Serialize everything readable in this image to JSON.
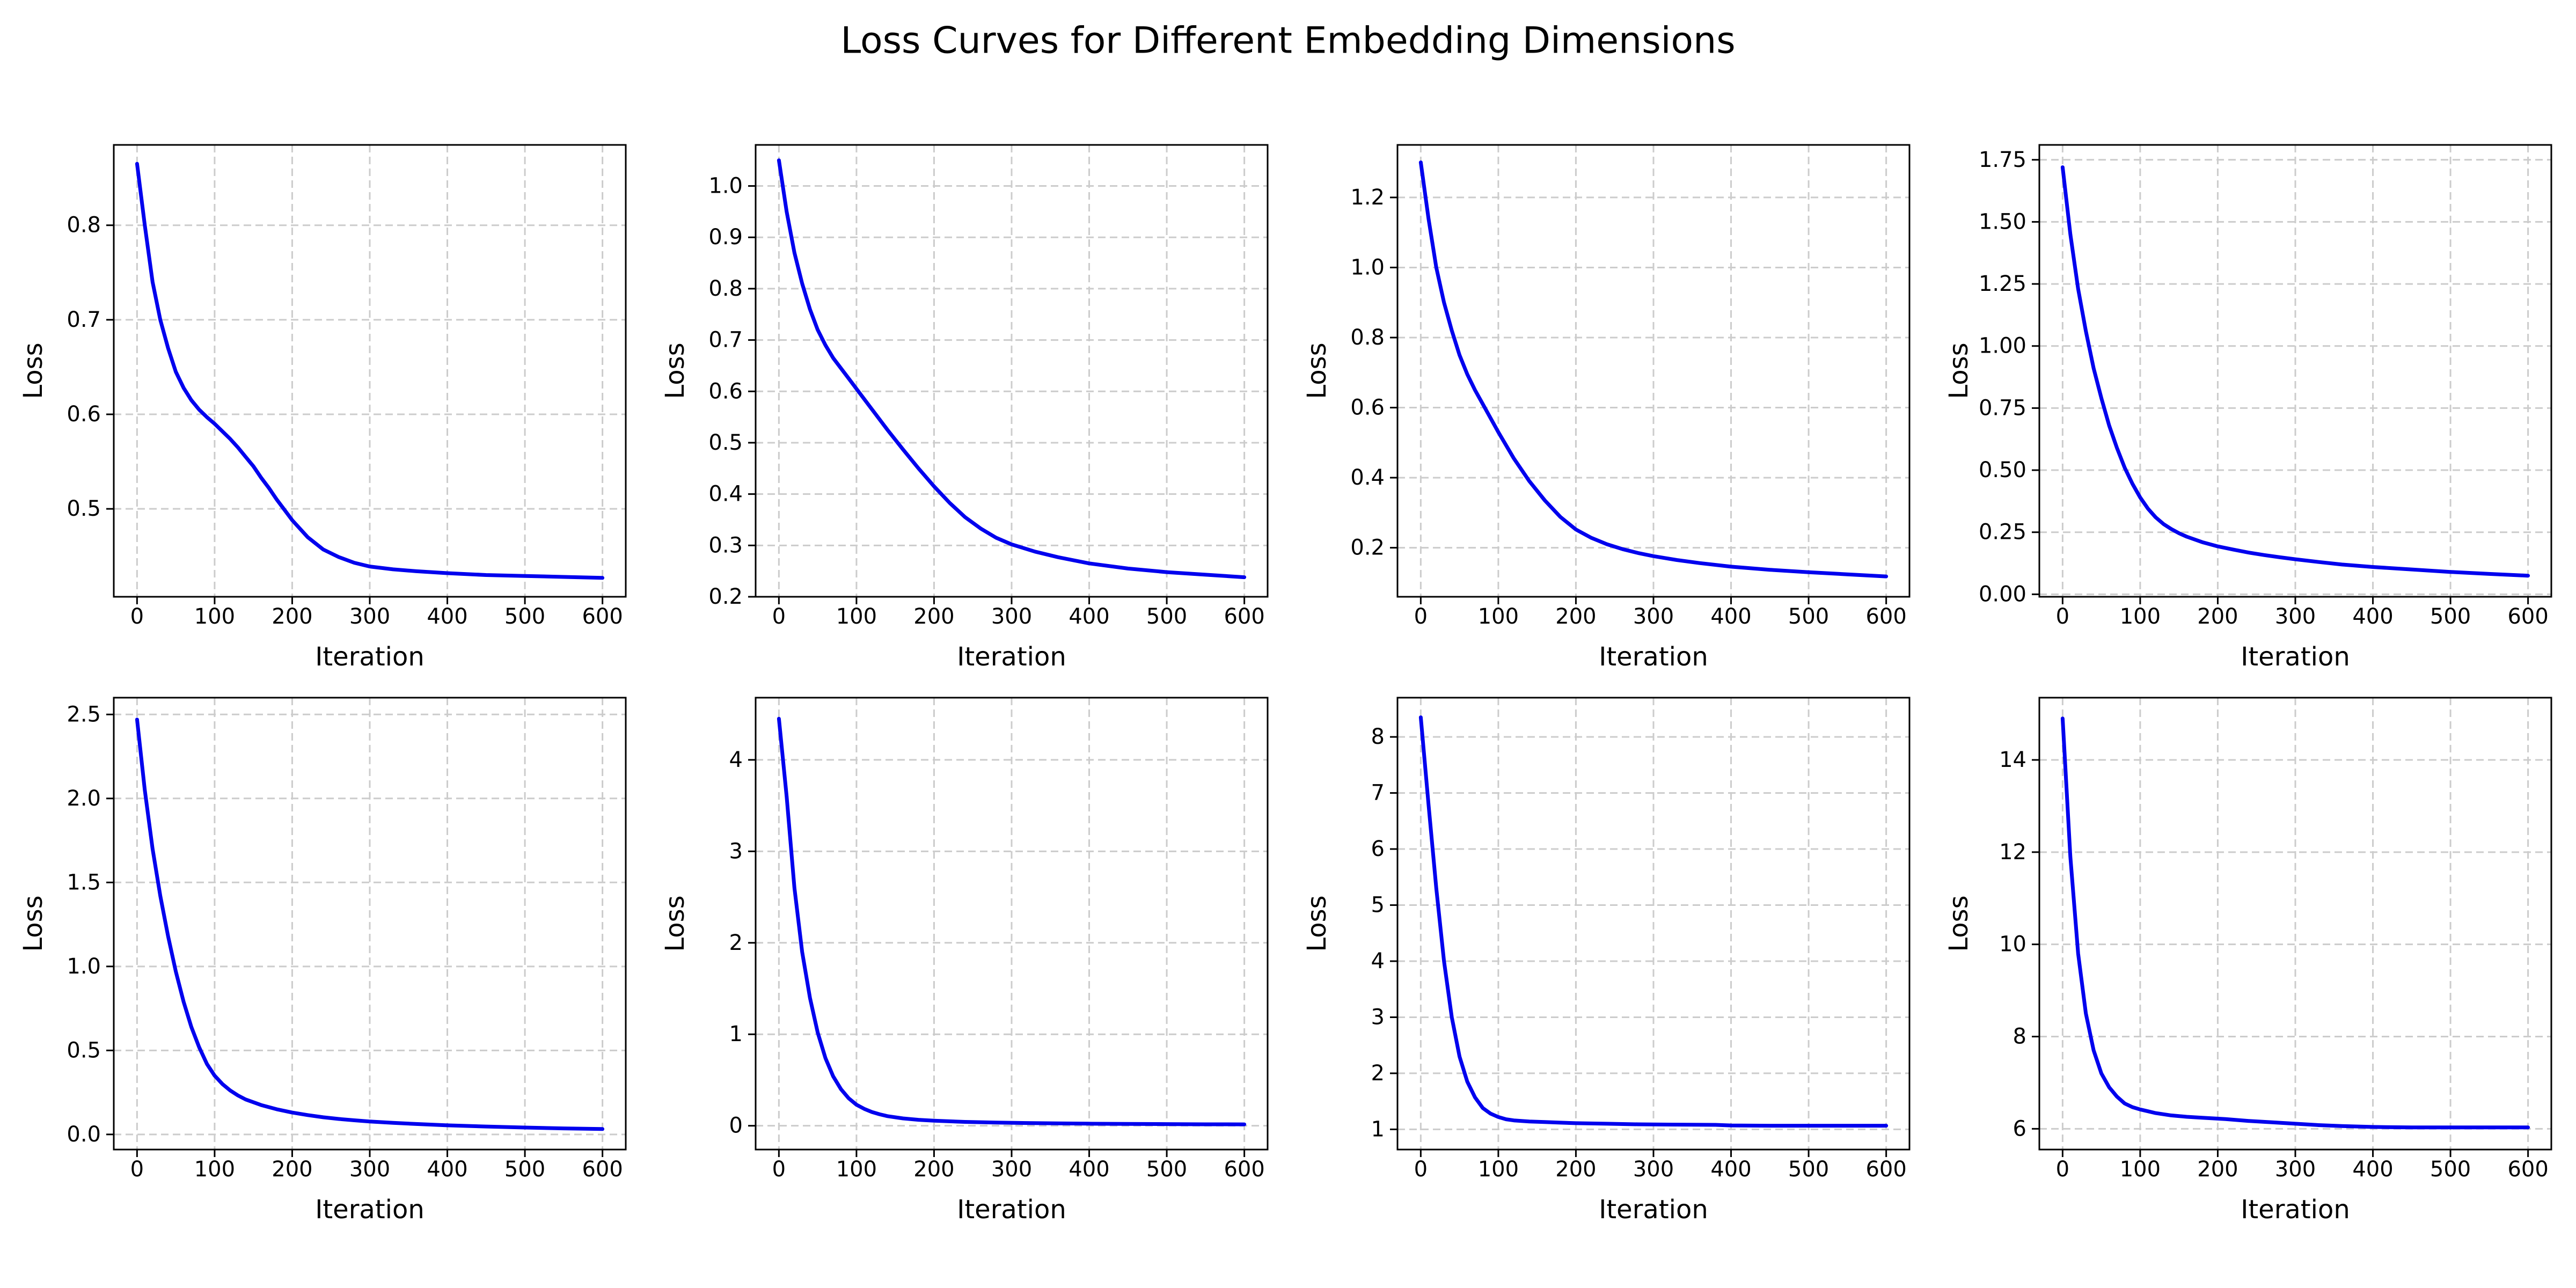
{
  "figure": {
    "title": "Loss Curves for Different Embedding Dimensions"
  },
  "colors": {
    "line": "#0000ee",
    "grid": "#cccccc",
    "axis": "#000000",
    "background": "#ffffff"
  },
  "chart_data": [
    {
      "type": "line",
      "xlabel": "Iteration",
      "ylabel": "Loss",
      "xlim": [
        -30,
        630
      ],
      "ylim": [
        0.407,
        0.885
      ],
      "xticks": [
        0,
        100,
        200,
        300,
        400,
        500,
        600
      ],
      "xtick_labels": [
        "0",
        "100",
        "200",
        "300",
        "400",
        "500",
        "600"
      ],
      "yticks": [
        0.5,
        0.6,
        0.7,
        0.8
      ],
      "ytick_labels": [
        "0.5",
        "0.6",
        "0.7",
        "0.8"
      ],
      "grid": true,
      "series": [
        {
          "x": [
            0,
            10,
            20,
            30,
            40,
            50,
            60,
            70,
            80,
            90,
            100,
            110,
            120,
            130,
            140,
            150,
            160,
            170,
            180,
            190,
            200,
            220,
            240,
            260,
            280,
            300,
            330,
            360,
            400,
            450,
            500,
            550,
            600
          ],
          "y": [
            0.865,
            0.8,
            0.74,
            0.7,
            0.67,
            0.645,
            0.628,
            0.615,
            0.605,
            0.597,
            0.59,
            0.582,
            0.574,
            0.565,
            0.555,
            0.545,
            0.533,
            0.522,
            0.51,
            0.499,
            0.488,
            0.47,
            0.457,
            0.449,
            0.443,
            0.439,
            0.436,
            0.434,
            0.432,
            0.43,
            0.429,
            0.428,
            0.427
          ]
        }
      ]
    },
    {
      "type": "line",
      "xlabel": "Iteration",
      "ylabel": "Loss",
      "xlim": [
        -30,
        630
      ],
      "ylim": [
        0.2,
        1.08
      ],
      "xticks": [
        0,
        100,
        200,
        300,
        400,
        500,
        600
      ],
      "xtick_labels": [
        "0",
        "100",
        "200",
        "300",
        "400",
        "500",
        "600"
      ],
      "yticks": [
        0.2,
        0.3,
        0.4,
        0.5,
        0.6,
        0.7,
        0.8,
        0.9,
        1.0
      ],
      "ytick_labels": [
        "0.2",
        "0.3",
        "0.4",
        "0.5",
        "0.6",
        "0.7",
        "0.8",
        "0.9",
        "1.0"
      ],
      "grid": true,
      "series": [
        {
          "x": [
            0,
            10,
            20,
            30,
            40,
            50,
            60,
            70,
            80,
            90,
            100,
            120,
            140,
            160,
            180,
            200,
            220,
            240,
            260,
            280,
            300,
            330,
            360,
            400,
            450,
            500,
            550,
            600
          ],
          "y": [
            1.05,
            0.95,
            0.87,
            0.81,
            0.76,
            0.72,
            0.69,
            0.665,
            0.645,
            0.625,
            0.605,
            0.565,
            0.525,
            0.487,
            0.45,
            0.415,
            0.383,
            0.355,
            0.333,
            0.315,
            0.302,
            0.288,
            0.277,
            0.265,
            0.255,
            0.248,
            0.243,
            0.238
          ]
        }
      ]
    },
    {
      "type": "line",
      "xlabel": "Iteration",
      "ylabel": "Loss",
      "xlim": [
        -30,
        630
      ],
      "ylim": [
        0.06,
        1.35
      ],
      "xticks": [
        0,
        100,
        200,
        300,
        400,
        500,
        600
      ],
      "xtick_labels": [
        "0",
        "100",
        "200",
        "300",
        "400",
        "500",
        "600"
      ],
      "yticks": [
        0.2,
        0.4,
        0.6,
        0.8,
        1.0,
        1.2
      ],
      "ytick_labels": [
        "0.2",
        "0.4",
        "0.6",
        "0.8",
        "1.0",
        "1.2"
      ],
      "grid": true,
      "series": [
        {
          "x": [
            0,
            10,
            20,
            30,
            40,
            50,
            60,
            70,
            80,
            100,
            120,
            140,
            160,
            180,
            200,
            220,
            240,
            260,
            280,
            300,
            330,
            360,
            400,
            450,
            500,
            550,
            600
          ],
          "y": [
            1.3,
            1.14,
            1.0,
            0.9,
            0.82,
            0.75,
            0.695,
            0.65,
            0.61,
            0.53,
            0.455,
            0.39,
            0.335,
            0.288,
            0.252,
            0.228,
            0.21,
            0.196,
            0.185,
            0.176,
            0.165,
            0.156,
            0.146,
            0.137,
            0.13,
            0.124,
            0.118
          ]
        }
      ]
    },
    {
      "type": "line",
      "xlabel": "Iteration",
      "ylabel": "Loss",
      "xlim": [
        -30,
        630
      ],
      "ylim": [
        -0.01,
        1.81
      ],
      "xticks": [
        0,
        100,
        200,
        300,
        400,
        500,
        600
      ],
      "xtick_labels": [
        "0",
        "100",
        "200",
        "300",
        "400",
        "500",
        "600"
      ],
      "yticks": [
        0.0,
        0.25,
        0.5,
        0.75,
        1.0,
        1.25,
        1.5,
        1.75
      ],
      "ytick_labels": [
        "0.00",
        "0.25",
        "0.50",
        "0.75",
        "1.00",
        "1.25",
        "1.50",
        "1.75"
      ],
      "grid": true,
      "series": [
        {
          "x": [
            0,
            10,
            20,
            30,
            40,
            50,
            60,
            70,
            80,
            90,
            100,
            110,
            120,
            130,
            140,
            150,
            160,
            180,
            200,
            220,
            240,
            260,
            280,
            300,
            330,
            360,
            400,
            450,
            500,
            550,
            600
          ],
          "y": [
            1.72,
            1.45,
            1.23,
            1.06,
            0.91,
            0.79,
            0.68,
            0.59,
            0.51,
            0.445,
            0.39,
            0.345,
            0.31,
            0.283,
            0.263,
            0.246,
            0.232,
            0.21,
            0.193,
            0.18,
            0.168,
            0.158,
            0.149,
            0.141,
            0.13,
            0.12,
            0.11,
            0.1,
            0.09,
            0.082,
            0.075
          ]
        }
      ]
    },
    {
      "type": "line",
      "xlabel": "Iteration",
      "ylabel": "Loss",
      "xlim": [
        -30,
        630
      ],
      "ylim": [
        -0.09,
        2.6
      ],
      "xticks": [
        0,
        100,
        200,
        300,
        400,
        500,
        600
      ],
      "xtick_labels": [
        "0",
        "100",
        "200",
        "300",
        "400",
        "500",
        "600"
      ],
      "yticks": [
        0.0,
        0.5,
        1.0,
        1.5,
        2.0,
        2.5
      ],
      "ytick_labels": [
        "0.0",
        "0.5",
        "1.0",
        "1.5",
        "2.0",
        "2.5"
      ],
      "grid": true,
      "series": [
        {
          "x": [
            0,
            10,
            20,
            30,
            40,
            50,
            60,
            70,
            80,
            90,
            100,
            110,
            120,
            130,
            140,
            160,
            180,
            200,
            220,
            240,
            260,
            280,
            300,
            330,
            360,
            400,
            450,
            500,
            550,
            600
          ],
          "y": [
            2.47,
            2.05,
            1.7,
            1.42,
            1.18,
            0.97,
            0.79,
            0.64,
            0.52,
            0.42,
            0.35,
            0.3,
            0.262,
            0.232,
            0.208,
            0.175,
            0.15,
            0.13,
            0.115,
            0.102,
            0.092,
            0.084,
            0.077,
            0.069,
            0.062,
            0.054,
            0.047,
            0.041,
            0.036,
            0.032
          ]
        }
      ]
    },
    {
      "type": "line",
      "xlabel": "Iteration",
      "ylabel": "Loss",
      "xlim": [
        -30,
        630
      ],
      "ylim": [
        -0.26,
        4.68
      ],
      "xticks": [
        0,
        100,
        200,
        300,
        400,
        500,
        600
      ],
      "xtick_labels": [
        "0",
        "100",
        "200",
        "300",
        "400",
        "500",
        "600"
      ],
      "yticks": [
        0,
        1,
        2,
        3,
        4
      ],
      "ytick_labels": [
        "0",
        "1",
        "2",
        "3",
        "4"
      ],
      "grid": true,
      "series": [
        {
          "x": [
            0,
            10,
            20,
            30,
            40,
            50,
            60,
            70,
            80,
            90,
            100,
            110,
            120,
            130,
            140,
            160,
            180,
            200,
            240,
            280,
            320,
            360,
            400,
            450,
            500,
            550,
            600
          ],
          "y": [
            4.45,
            3.6,
            2.6,
            1.9,
            1.4,
            1.02,
            0.74,
            0.54,
            0.4,
            0.3,
            0.23,
            0.185,
            0.15,
            0.125,
            0.105,
            0.08,
            0.065,
            0.055,
            0.042,
            0.035,
            0.03,
            0.026,
            0.023,
            0.02,
            0.018,
            0.016,
            0.015
          ]
        }
      ]
    },
    {
      "type": "line",
      "xlabel": "Iteration",
      "ylabel": "Loss",
      "xlim": [
        -30,
        630
      ],
      "ylim": [
        0.64,
        8.7
      ],
      "xticks": [
        0,
        100,
        200,
        300,
        400,
        500,
        600
      ],
      "xtick_labels": [
        "0",
        "100",
        "200",
        "300",
        "400",
        "500",
        "600"
      ],
      "yticks": [
        1,
        2,
        3,
        4,
        5,
        6,
        7,
        8
      ],
      "ytick_labels": [
        "1",
        "2",
        "3",
        "4",
        "5",
        "6",
        "7",
        "8"
      ],
      "grid": true,
      "series": [
        {
          "x": [
            0,
            10,
            20,
            30,
            40,
            50,
            60,
            70,
            80,
            90,
            100,
            110,
            120,
            140,
            160,
            180,
            200,
            240,
            280,
            320,
            380,
            400,
            450,
            500,
            550,
            600
          ],
          "y": [
            8.35,
            6.8,
            5.3,
            4.0,
            3.0,
            2.3,
            1.85,
            1.57,
            1.38,
            1.28,
            1.22,
            1.18,
            1.16,
            1.14,
            1.13,
            1.12,
            1.11,
            1.1,
            1.09,
            1.085,
            1.08,
            1.07,
            1.065,
            1.065,
            1.065,
            1.065
          ]
        }
      ]
    },
    {
      "type": "line",
      "xlabel": "Iteration",
      "ylabel": "Loss",
      "xlim": [
        -30,
        630
      ],
      "ylim": [
        5.55,
        15.35
      ],
      "xticks": [
        0,
        100,
        200,
        300,
        400,
        500,
        600
      ],
      "xtick_labels": [
        "0",
        "100",
        "200",
        "300",
        "400",
        "500",
        "600"
      ],
      "yticks": [
        6,
        8,
        10,
        12,
        14
      ],
      "ytick_labels": [
        "6",
        "8",
        "10",
        "12",
        "14"
      ],
      "grid": true,
      "series": [
        {
          "x": [
            0,
            10,
            20,
            30,
            40,
            50,
            60,
            70,
            80,
            90,
            100,
            110,
            120,
            140,
            160,
            180,
            210,
            240,
            270,
            300,
            330,
            360,
            400,
            450,
            500,
            550,
            600
          ],
          "y": [
            14.9,
            11.9,
            9.8,
            8.5,
            7.7,
            7.2,
            6.9,
            6.7,
            6.55,
            6.47,
            6.42,
            6.38,
            6.34,
            6.29,
            6.26,
            6.24,
            6.21,
            6.17,
            6.14,
            6.11,
            6.08,
            6.06,
            6.04,
            6.03,
            6.03,
            6.03,
            6.03
          ]
        }
      ]
    }
  ]
}
